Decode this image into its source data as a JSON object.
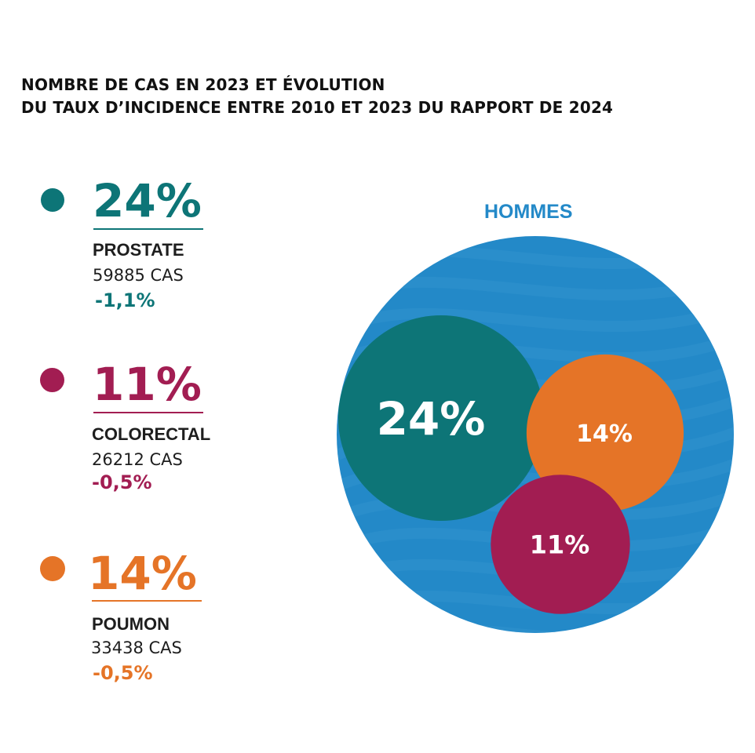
{
  "title": {
    "line1": "NOMBRE DE CAS EN 2023 ET ÉVOLUTION",
    "line2": "DU TAUX D’INCIDENCE ENTRE 2010 ET 2023 DU RAPPORT DE 2024"
  },
  "colors": {
    "prostate": "#0d7577",
    "colorectal": "#a21d52",
    "poumon": "#e57427",
    "hommes": "#2389c8"
  },
  "legend": [
    {
      "pct": "24%",
      "name": "PROSTATE",
      "cases": "59885 CAS",
      "change": "-1,1%"
    },
    {
      "pct": "11%",
      "name": "COLORECTAL",
      "cases": "26212 CAS",
      "change": "-0,5%"
    },
    {
      "pct": "14%",
      "name": "POUMON",
      "cases": "33438 CAS",
      "change": "-0,5%"
    }
  ],
  "chart_data": {
    "type": "bubble",
    "title": "HOMMES",
    "container": "HOMMES",
    "series": [
      {
        "name": "PROSTATE",
        "value": 24,
        "label": "24%",
        "color": "#0d7577"
      },
      {
        "name": "POUMON",
        "value": 14,
        "label": "14%",
        "color": "#e57427"
      },
      {
        "name": "COLORECTAL",
        "value": 11,
        "label": "11%",
        "color": "#a21d52"
      }
    ]
  }
}
